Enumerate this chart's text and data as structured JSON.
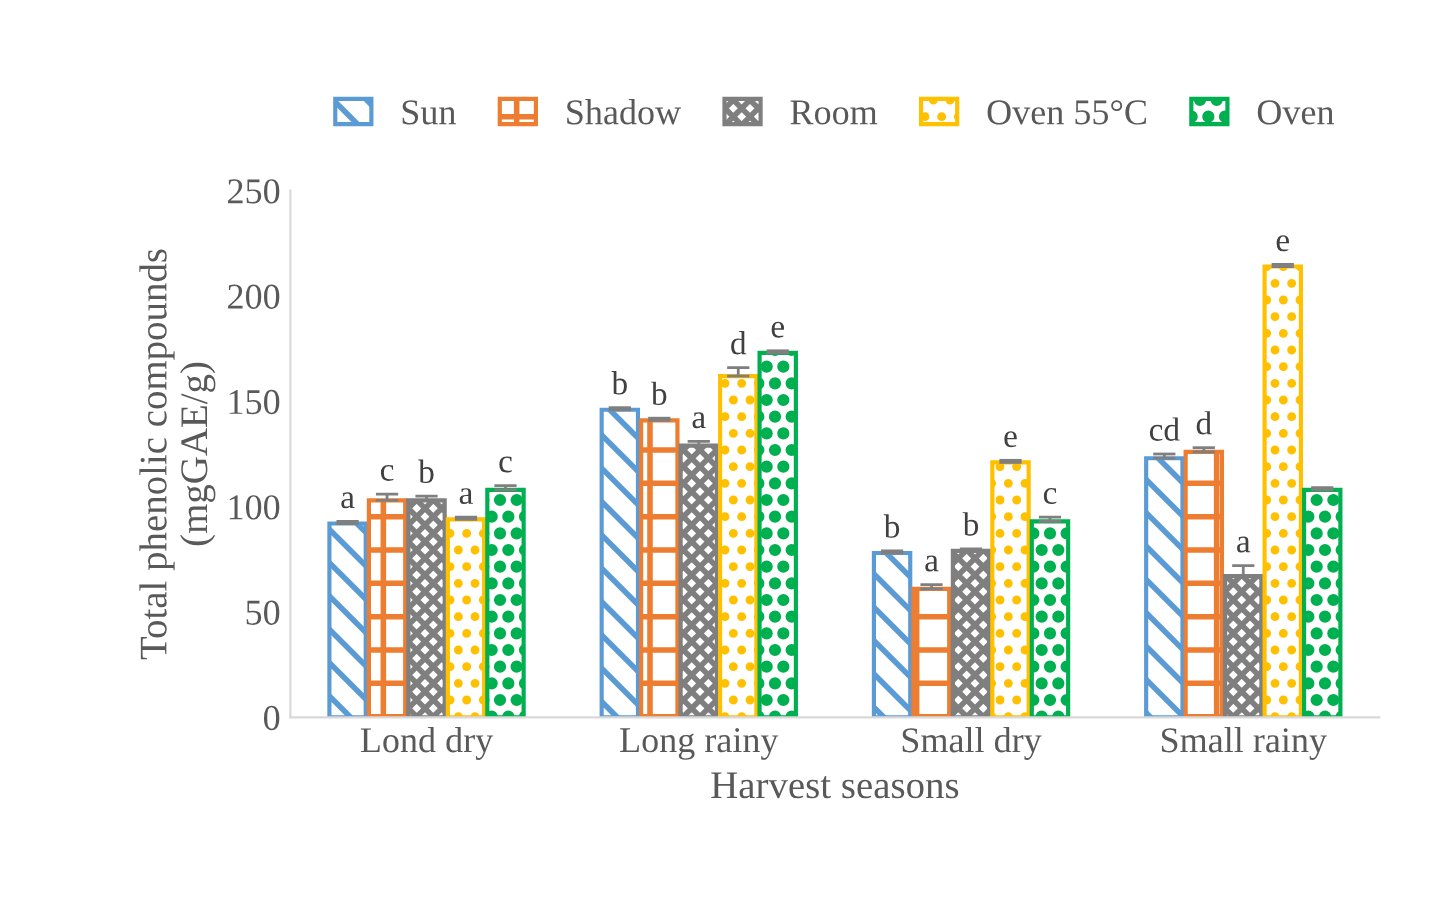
{
  "chart_data": {
    "type": "bar",
    "xlabel": "Harvest seasons",
    "ylabel": "Total phenolic compounds\n(mgGAE/g)",
    "categories": [
      "Lond dry",
      "Long rainy",
      "Small dry",
      "Small rainy"
    ],
    "series": [
      {
        "name": "Sun",
        "color": "#5b9bd5",
        "values": [
          92,
          146,
          78,
          123
        ],
        "errors": [
          1,
          1,
          1,
          2
        ],
        "value_labels": [
          "a",
          "b",
          "b",
          "cd"
        ]
      },
      {
        "name": "Shadow",
        "color": "#ed7d31",
        "values": [
          103,
          141,
          61,
          126
        ],
        "errors": [
          3,
          1,
          2,
          2
        ],
        "value_labels": [
          "c",
          "b",
          "a",
          "d"
        ]
      },
      {
        "name": "Room",
        "color": "#7f7f7f",
        "values": [
          103,
          129,
          79,
          67
        ],
        "errors": [
          2,
          2,
          1,
          5
        ],
        "value_labels": [
          "b",
          "a",
          "b",
          "a"
        ]
      },
      {
        "name": "Oven 55°C",
        "color": "#ffc000",
        "values": [
          94,
          162,
          121,
          214
        ],
        "errors": [
          1,
          4,
          1,
          1
        ],
        "value_labels": [
          "a",
          "d",
          "e",
          "e"
        ]
      },
      {
        "name": "Oven",
        "color": "#00b050",
        "values": [
          108,
          173,
          93,
          108
        ],
        "errors": [
          2,
          1,
          2,
          1
        ],
        "value_labels": [
          "c",
          "e",
          "c",
          null
        ]
      }
    ],
    "ylim": [
      0,
      250
    ],
    "yticks": [
      0,
      50,
      100,
      150,
      200,
      250
    ],
    "grid": false,
    "legend": "top"
  }
}
